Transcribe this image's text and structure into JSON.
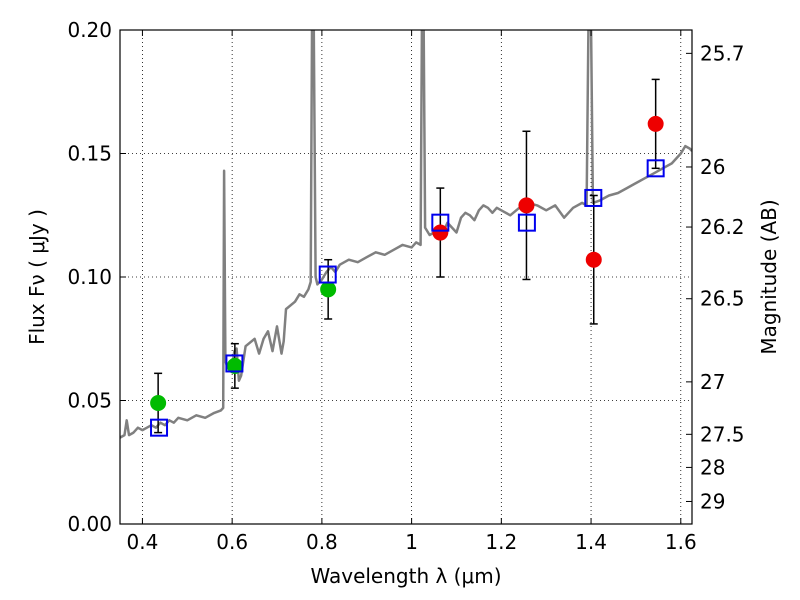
{
  "chart_data": {
    "type": "scatter",
    "xlabel": "Wavelength  λ (μm)",
    "ylabel": "Flux  Fν  ( μJy )",
    "ylabel_right": "Magnitude (AB)",
    "xlim": [
      0.35,
      1.625
    ],
    "ylim": [
      0,
      0.2
    ],
    "grid": true,
    "x_ticks": [
      {
        "value": 0.4,
        "label": "0.4"
      },
      {
        "value": 0.6,
        "label": "0.6"
      },
      {
        "value": 0.8,
        "label": "0.8"
      },
      {
        "value": 1.0,
        "label": "1"
      },
      {
        "value": 1.2,
        "label": "1.2"
      },
      {
        "value": 1.4,
        "label": "1.4"
      },
      {
        "value": 1.6,
        "label": "1.6"
      }
    ],
    "y_ticks": [
      {
        "value": 0.0,
        "label": "0.00"
      },
      {
        "value": 0.05,
        "label": "0.05"
      },
      {
        "value": 0.1,
        "label": "0.10"
      },
      {
        "value": 0.15,
        "label": "0.15"
      },
      {
        "value": 0.2,
        "label": "0.20"
      }
    ],
    "right_ticks": [
      {
        "value": 25.7,
        "label": "25.7"
      },
      {
        "value": 26.0,
        "label": "26"
      },
      {
        "value": 26.2,
        "label": "26.2"
      },
      {
        "value": 26.5,
        "label": "26.5"
      },
      {
        "value": 27.0,
        "label": "27"
      },
      {
        "value": 27.5,
        "label": "27.5"
      },
      {
        "value": 28.0,
        "label": "28"
      },
      {
        "value": 29.0,
        "label": "29"
      }
    ],
    "series": [
      {
        "marker": "circle",
        "color": "#00bb00",
        "points": [
          {
            "x": 0.435,
            "y": 0.049,
            "yerr": 0.012
          },
          {
            "x": 0.606,
            "y": 0.064,
            "yerr": 0.009
          },
          {
            "x": 0.814,
            "y": 0.095,
            "yerr": 0.012
          }
        ]
      },
      {
        "marker": "circle",
        "color": "#ee0000",
        "points": [
          {
            "x": 1.064,
            "y": 0.118,
            "yerr": 0.018
          },
          {
            "x": 1.256,
            "y": 0.129,
            "yerr": 0.03
          },
          {
            "x": 1.406,
            "y": 0.107,
            "yerr": 0.026
          },
          {
            "x": 1.544,
            "y": 0.162,
            "yerr": 0.018
          }
        ]
      },
      {
        "marker": "square-open",
        "color": "#0000ee",
        "points": [
          {
            "x": 0.437,
            "y": 0.039
          },
          {
            "x": 0.605,
            "y": 0.065
          },
          {
            "x": 0.813,
            "y": 0.101
          },
          {
            "x": 1.064,
            "y": 0.122
          },
          {
            "x": 1.257,
            "y": 0.122
          },
          {
            "x": 1.405,
            "y": 0.132
          },
          {
            "x": 1.544,
            "y": 0.144
          }
        ]
      },
      {
        "type": "line",
        "color": "#808080",
        "points": [
          [
            0.35,
            0.035
          ],
          [
            0.36,
            0.036
          ],
          [
            0.365,
            0.042
          ],
          [
            0.37,
            0.036
          ],
          [
            0.38,
            0.037
          ],
          [
            0.39,
            0.039
          ],
          [
            0.4,
            0.038
          ],
          [
            0.41,
            0.039
          ],
          [
            0.42,
            0.04
          ],
          [
            0.43,
            0.039
          ],
          [
            0.44,
            0.041
          ],
          [
            0.45,
            0.04
          ],
          [
            0.46,
            0.042
          ],
          [
            0.47,
            0.041
          ],
          [
            0.48,
            0.043
          ],
          [
            0.5,
            0.042
          ],
          [
            0.52,
            0.044
          ],
          [
            0.54,
            0.043
          ],
          [
            0.56,
            0.045
          ],
          [
            0.575,
            0.046
          ],
          [
            0.58,
            0.047
          ],
          [
            0.582,
            0.143
          ],
          [
            0.585,
            0.066
          ],
          [
            0.59,
            0.063
          ],
          [
            0.6,
            0.064
          ],
          [
            0.605,
            0.07
          ],
          [
            0.61,
            0.071
          ],
          [
            0.615,
            0.058
          ],
          [
            0.62,
            0.06
          ],
          [
            0.63,
            0.072
          ],
          [
            0.65,
            0.075
          ],
          [
            0.66,
            0.069
          ],
          [
            0.67,
            0.075
          ],
          [
            0.68,
            0.078
          ],
          [
            0.69,
            0.07
          ],
          [
            0.7,
            0.08
          ],
          [
            0.71,
            0.069
          ],
          [
            0.715,
            0.074
          ],
          [
            0.72,
            0.087
          ],
          [
            0.74,
            0.09
          ],
          [
            0.75,
            0.093
          ],
          [
            0.76,
            0.092
          ],
          [
            0.77,
            0.095
          ],
          [
            0.775,
            0.098
          ],
          [
            0.778,
            0.2
          ],
          [
            0.782,
            0.2
          ],
          [
            0.786,
            0.1
          ],
          [
            0.79,
            0.097
          ],
          [
            0.8,
            0.099
          ],
          [
            0.81,
            0.102
          ],
          [
            0.82,
            0.104
          ],
          [
            0.83,
            0.102
          ],
          [
            0.84,
            0.105
          ],
          [
            0.86,
            0.107
          ],
          [
            0.88,
            0.106
          ],
          [
            0.9,
            0.108
          ],
          [
            0.92,
            0.11
          ],
          [
            0.94,
            0.109
          ],
          [
            0.96,
            0.111
          ],
          [
            0.98,
            0.113
          ],
          [
            1.0,
            0.112
          ],
          [
            1.01,
            0.114
          ],
          [
            1.02,
            0.113
          ],
          [
            1.023,
            0.2
          ],
          [
            1.027,
            0.2
          ],
          [
            1.03,
            0.12
          ],
          [
            1.04,
            0.117
          ],
          [
            1.05,
            0.118
          ],
          [
            1.06,
            0.119
          ],
          [
            1.07,
            0.118
          ],
          [
            1.08,
            0.122
          ],
          [
            1.09,
            0.12
          ],
          [
            1.1,
            0.118
          ],
          [
            1.11,
            0.124
          ],
          [
            1.12,
            0.126
          ],
          [
            1.13,
            0.125
          ],
          [
            1.14,
            0.123
          ],
          [
            1.15,
            0.127
          ],
          [
            1.16,
            0.129
          ],
          [
            1.17,
            0.128
          ],
          [
            1.18,
            0.126
          ],
          [
            1.19,
            0.128
          ],
          [
            1.2,
            0.127
          ],
          [
            1.22,
            0.125
          ],
          [
            1.24,
            0.128
          ],
          [
            1.26,
            0.13
          ],
          [
            1.28,
            0.129
          ],
          [
            1.3,
            0.127
          ],
          [
            1.32,
            0.129
          ],
          [
            1.34,
            0.124
          ],
          [
            1.36,
            0.128
          ],
          [
            1.38,
            0.13
          ],
          [
            1.39,
            0.129
          ],
          [
            1.394,
            0.2
          ],
          [
            1.4,
            0.2
          ],
          [
            1.404,
            0.13
          ],
          [
            1.42,
            0.131
          ],
          [
            1.44,
            0.133
          ],
          [
            1.46,
            0.134
          ],
          [
            1.48,
            0.136
          ],
          [
            1.5,
            0.138
          ],
          [
            1.52,
            0.14
          ],
          [
            1.54,
            0.142
          ],
          [
            1.56,
            0.144
          ],
          [
            1.58,
            0.146
          ],
          [
            1.6,
            0.15
          ],
          [
            1.61,
            0.153
          ],
          [
            1.62,
            0.152
          ],
          [
            1.625,
            0.151
          ]
        ]
      }
    ]
  }
}
